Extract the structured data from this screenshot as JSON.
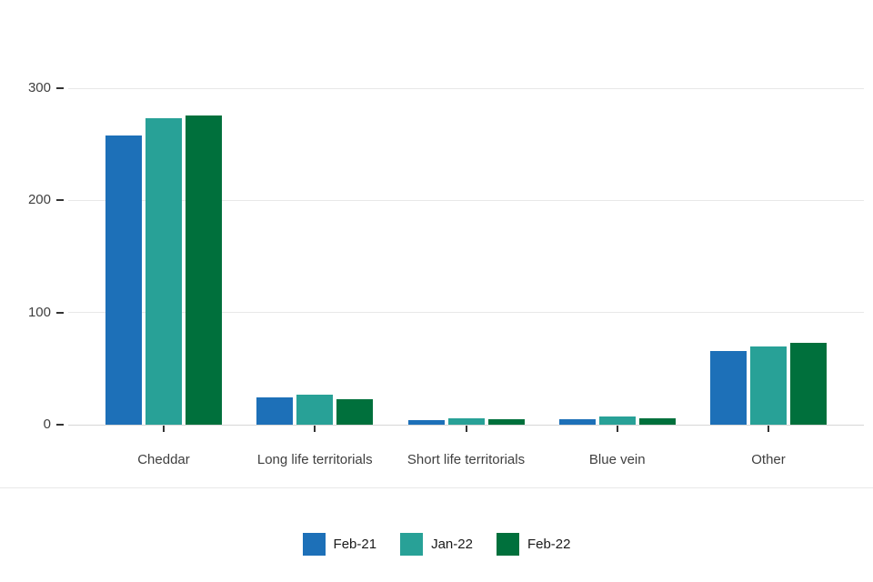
{
  "chart_data": {
    "type": "bar",
    "title": "",
    "xlabel": "",
    "ylabel": "",
    "categories": [
      "Cheddar",
      "Long life territorials",
      "Short life territorials",
      "Blue vein",
      "Other"
    ],
    "series": [
      {
        "name": "Feb-21",
        "color": "#1d70b8",
        "values": [
          258,
          24,
          4,
          5,
          66
        ]
      },
      {
        "name": "Jan-22",
        "color": "#28a197",
        "values": [
          273,
          27,
          6,
          7,
          70
        ]
      },
      {
        "name": "Feb-22",
        "color": "#00703c",
        "values": [
          276,
          23,
          5,
          6,
          73
        ]
      }
    ],
    "ylim": [
      0,
      300
    ],
    "yticks": [
      0,
      100,
      200,
      300
    ],
    "grid": true,
    "grid_color": "#e8e8e8",
    "axis_text_color": "#3f3f3f",
    "legend_position": "bottom",
    "legend_labels": [
      "Feb-21",
      "Jan-22",
      "Feb-22"
    ]
  }
}
